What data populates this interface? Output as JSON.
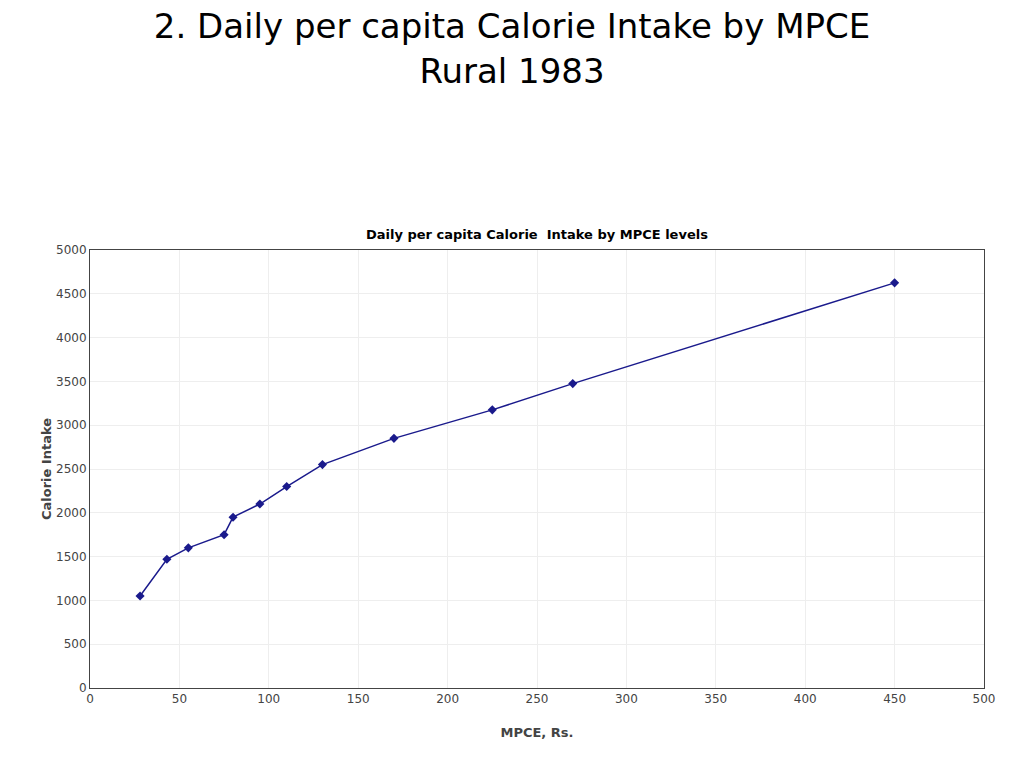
{
  "chart_data": {
    "type": "line",
    "title": "2. Daily per capita Calorie Intake by MPCE",
    "subtitle": "Rural 1983",
    "annotations": [
      "Daily per capita Calorie  Intake by MPCE levels"
    ],
    "x_label": "MPCE, Rs.",
    "y_label": "Calorie Intake",
    "x": [
      28,
      43,
      55,
      75,
      80,
      95,
      110,
      130,
      170,
      225,
      270,
      450
    ],
    "values": [
      1050,
      1470,
      1600,
      1750,
      1950,
      2100,
      2300,
      2550,
      2850,
      3175,
      3475,
      4625
    ],
    "color": "#1a1a8c",
    "marker": "diamond",
    "xlim": [
      0,
      500
    ],
    "ylim": [
      0,
      5000
    ],
    "xticks": [
      0,
      50,
      100,
      150,
      200,
      250,
      300,
      350,
      400,
      450,
      500
    ],
    "yticks": [
      0,
      500,
      1000,
      1500,
      2000,
      2500,
      3000,
      3500,
      4000,
      4500,
      5000
    ],
    "grid": true
  }
}
